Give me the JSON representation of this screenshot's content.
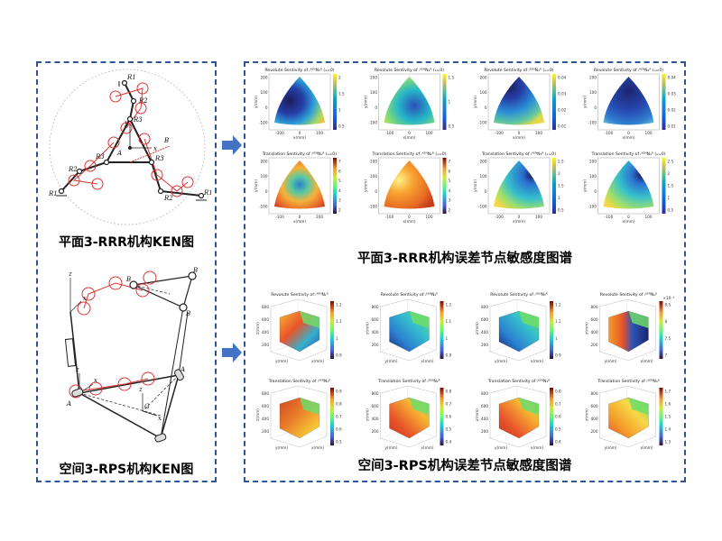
{
  "left": {
    "rrr_caption": "平面3-RRR机构KEN图",
    "rps_caption": "空间3-RPS机构KEN图",
    "rrr_labels": [
      "R1",
      "R2",
      "R3",
      "R1",
      "R2",
      "R3",
      "R1",
      "R2",
      "R3",
      "x",
      "y",
      "A",
      "B"
    ],
    "rps_labels": [
      "z",
      "x",
      "z",
      "x",
      "z",
      "x",
      "B",
      "B",
      "B",
      "A",
      "A",
      "G"
    ]
  },
  "right": {
    "rrr_caption": "平面3-RRR机构误差节点敏感度图谱",
    "rps_caption": "空间3-RPS机构误差节点敏感度图谱"
  },
  "plots_2d": {
    "revolute_titles": [
      "Revolute Sentivity of ᵣᴷᴱᴺN₁ᴿ (ₐ=0)",
      "Revolute Sentivity of ᵣᴷᴱᴺN₂ᴿ (ₐ=0)",
      "Revolute Sentivity of ᵣᴷᴱᴺN₃ᴿ (ₐ=0)",
      "Revolute Sentivity of ᵣᴷᴱᴺN₄ᴿ (ₐ=0)"
    ],
    "translation_titles": [
      "Translation Sentivity of ᵣᴷᴱᴺN₁ᴿ (ₐ=0)",
      "Translation Sentivity of ᵣᴷᴱᴺN₂ᴿ (ₐ=0)",
      "Translation Sentivity of ᵣᴷᴱᴺN₃ᴿ (ₐ=0)",
      "Translation Sentivity of ᵣᴷᴱᴺN₄ᴿ (ₐ=0)"
    ],
    "xlabel": "x(mm)",
    "ylabel": "y(mm)",
    "xticks": [
      "-100",
      "0",
      "100"
    ],
    "yticks": [
      "200",
      "100",
      "0",
      "-100"
    ],
    "revolute_colorbars": [
      [
        "2",
        "1.5",
        "1",
        "0.5"
      ],
      [
        "1.5",
        "1",
        "0.5"
      ],
      [
        "0.04",
        "0.03",
        "0.02",
        "0.01"
      ],
      [
        "0.04",
        "0.03",
        "0.02",
        "0.01"
      ]
    ],
    "translation_colorbars": [
      [
        "7",
        "6",
        "5",
        "4",
        "3",
        "2"
      ],
      [
        "7",
        "6",
        "5",
        "4",
        "3",
        "2"
      ],
      [
        "2.5",
        "2",
        "1.5",
        "1",
        "0.5"
      ],
      [
        "2.5",
        "2",
        "1.5",
        "1",
        "0.5"
      ]
    ]
  },
  "plots_3d": {
    "revolute_titles": [
      "Revolute Sentivity of ᵣᴷᴱᴺN₁ᴿ",
      "Revolute Sentivity of ᵣᴷᴱᴺN₂ᴿ",
      "Revolute Sentivity of ᵣᴷᴱᴺN₃ᴿ",
      "Revolute Sentivity of ᵣᴷᴱᴺN₄ᴿ"
    ],
    "translation_titles": [
      "Translation Sentivity of ᵣᴷᴱᴺN₁ᴿ",
      "Translation Sentivity of ᵣᴷᴱᴺN₂ᴿ",
      "Translation Sentivity of ᵣᴷᴱᴺN₃ᴿ",
      "Translation Sentivity of ᵣᴷᴱᴺN₄ᴿ"
    ],
    "zlabel": "z(mm)",
    "xlabel": "x(mm)",
    "ylabel": "y(mm)",
    "zticks": [
      "800",
      "600",
      "400",
      "200"
    ],
    "rev_colorbars": [
      [
        "1.2",
        "1.1",
        "1",
        "0.9"
      ],
      [
        "1.2",
        "1.1",
        "1",
        "0.9"
      ],
      [
        "1.2",
        "1.1",
        "1",
        "0.9"
      ],
      [
        "8.5",
        "8",
        "7.5",
        "7"
      ]
    ],
    "rev_exponent": "×10⁻³",
    "trans_colorbars": [
      [
        "0.9",
        "0.8",
        "0.7",
        "0.6",
        "0.5"
      ],
      [
        "0.8",
        "0.7",
        "0.6",
        "0.5",
        "0.4"
      ],
      [
        "0.8",
        "0.7",
        "0.6",
        "0.5",
        "0.4"
      ],
      [
        "1.7",
        "1.6",
        "1.5",
        "1.4",
        "1.3"
      ]
    ]
  }
}
